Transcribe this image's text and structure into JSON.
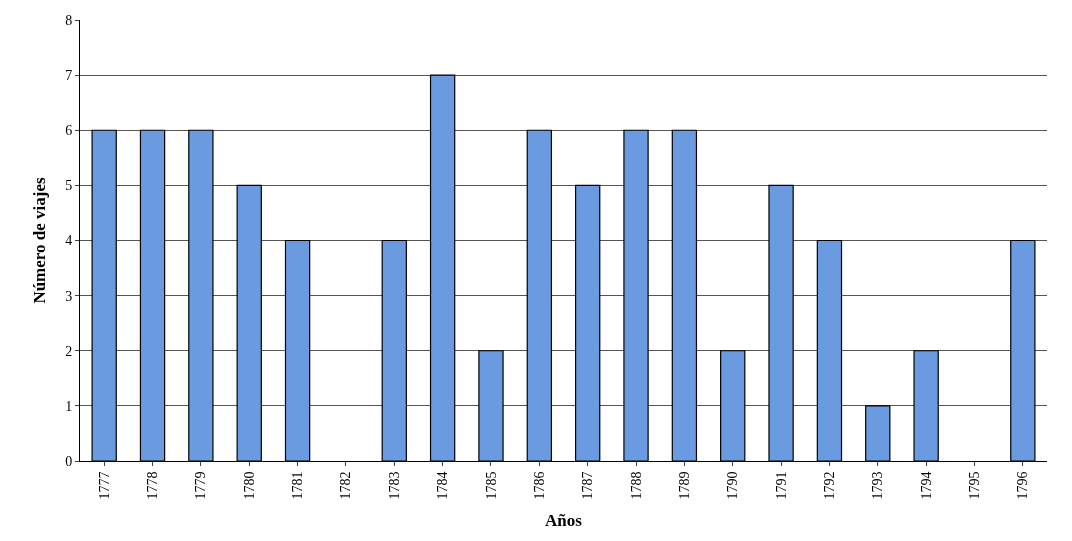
{
  "chart_data": {
    "type": "bar",
    "xlabel": "Años",
    "ylabel": "Número de viajes",
    "categories": [
      "1777",
      "1778",
      "1779",
      "1780",
      "1781",
      "1782",
      "1783",
      "1784",
      "1785",
      "1786",
      "1787",
      "1788",
      "1789",
      "1790",
      "1791",
      "1792",
      "1793",
      "1794",
      "1795",
      "1796"
    ],
    "values": [
      6,
      6,
      6,
      5,
      4,
      0,
      4,
      7,
      2,
      6,
      5,
      6,
      6,
      2,
      5,
      4,
      1,
      2,
      0,
      4
    ],
    "color": "#6a9be0",
    "ylim": [
      0,
      8
    ],
    "yticks": [
      0,
      1,
      2,
      3,
      4,
      5,
      6,
      7,
      8
    ],
    "grid": "y"
  }
}
